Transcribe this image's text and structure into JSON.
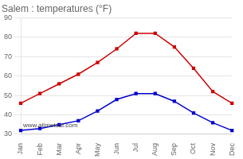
{
  "chart_data": {
    "type": "line",
    "title": "Salem : temperatures (°F)",
    "categories": [
      "Jan",
      "Feb",
      "Mar",
      "Apr",
      "May",
      "Jun",
      "Jul",
      "Aug",
      "Sep",
      "Oct",
      "Nov",
      "Dec"
    ],
    "series": [
      {
        "color": "#cc0000",
        "marker": "square",
        "values": [
          46,
          51,
          56,
          61,
          67,
          74,
          82,
          82,
          75,
          64,
          52,
          46
        ]
      },
      {
        "color": "#0000cc",
        "marker": "square",
        "values": [
          32,
          33,
          35,
          37,
          42,
          48,
          51,
          51,
          47,
          41,
          36,
          32
        ]
      }
    ],
    "ylim": [
      30,
      90
    ],
    "yticks": [
      30,
      40,
      50,
      60,
      70,
      80,
      90
    ],
    "grid": true,
    "annotation": "www.allmetsat.com"
  }
}
